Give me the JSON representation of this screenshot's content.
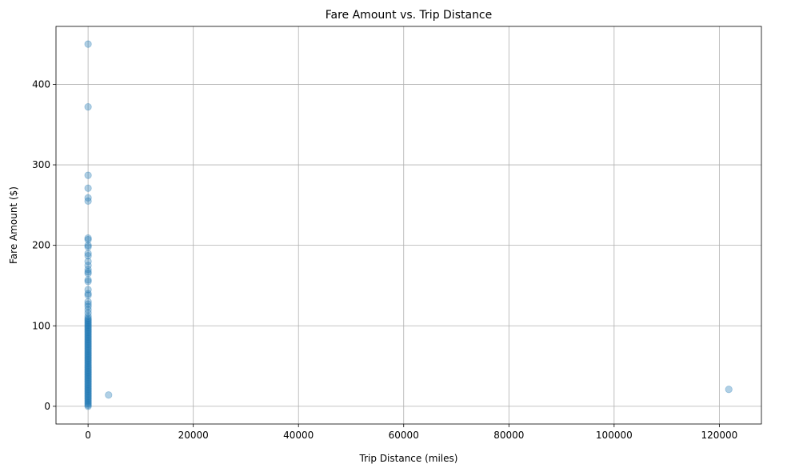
{
  "chart_data": {
    "type": "scatter",
    "title": "Fare Amount vs. Trip Distance",
    "xlabel": "Trip Distance (miles)",
    "ylabel": "Fare Amount ($)",
    "xlim": [
      -6100,
      128000
    ],
    "ylim": [
      -22,
      472
    ],
    "xticks": [
      0,
      20000,
      40000,
      60000,
      80000,
      100000,
      120000
    ],
    "xtick_labels": [
      "0",
      "20000",
      "40000",
      "60000",
      "80000",
      "100000",
      "120000"
    ],
    "yticks": [
      0,
      100,
      200,
      300,
      400
    ],
    "ytick_labels": [
      "0",
      "100",
      "200",
      "300",
      "400"
    ],
    "grid": true,
    "point_color": "#1f77b4",
    "point_alpha": 0.35,
    "series": [
      {
        "points": [
          [
            0,
            450
          ],
          [
            0,
            372
          ],
          [
            0,
            287
          ],
          [
            0,
            271
          ],
          [
            0,
            259
          ],
          [
            0,
            255
          ],
          [
            0,
            209
          ],
          [
            0,
            207
          ],
          [
            0,
            200
          ],
          [
            0,
            198
          ],
          [
            0,
            190
          ],
          [
            0,
            187
          ],
          [
            0,
            180
          ],
          [
            0,
            175
          ],
          [
            0,
            170
          ],
          [
            0,
            167
          ],
          [
            0,
            165
          ],
          [
            0,
            157
          ],
          [
            0,
            155
          ],
          [
            0,
            145
          ],
          [
            0,
            140
          ],
          [
            0,
            138
          ],
          [
            0,
            130
          ],
          [
            0,
            127
          ],
          [
            0,
            124
          ],
          [
            0,
            120
          ],
          [
            0,
            116
          ],
          [
            0,
            112
          ],
          [
            3900,
            14
          ],
          [
            121800,
            21
          ]
        ],
        "dense_band": {
          "x": 0,
          "y_from": 0,
          "y_to": 110
        }
      }
    ]
  }
}
